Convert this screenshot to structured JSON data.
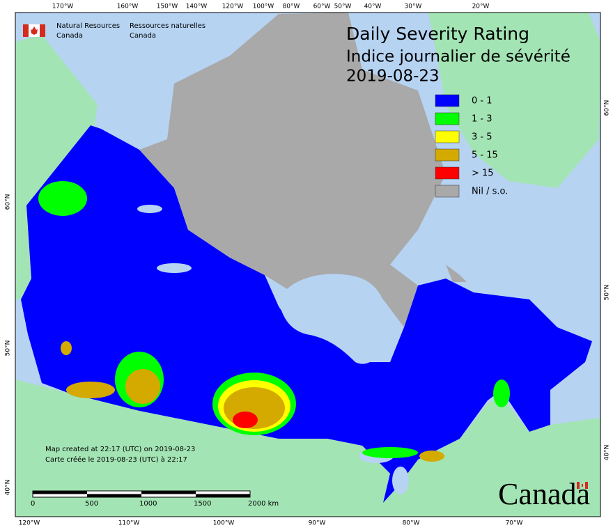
{
  "agency": {
    "en": [
      "Natural Resources",
      "Canada"
    ],
    "fr": [
      "Ressources naturelles",
      "Canada"
    ]
  },
  "title": {
    "lines": [
      "Daily Severity Rating",
      "Indice journalier de sévérité"
    ],
    "date": "2019-08-23"
  },
  "legend": [
    {
      "label": "0 - 1",
      "color": "#0000ff"
    },
    {
      "label": "1 - 3",
      "color": "#00ff00"
    },
    {
      "label": "3 - 5",
      "color": "#ffff00"
    },
    {
      "label": "5 - 15",
      "color": "#d4aa00"
    },
    {
      "label": "> 15",
      "color": "#ff0000"
    },
    {
      "label": "Nil / s.o.",
      "color": "#a9a9a9"
    }
  ],
  "graticule": {
    "top": [
      "170°W",
      "160°W",
      "150°W",
      "140°W",
      "120°W",
      "100°W",
      "80°W",
      "60°W",
      "50°W",
      "40°W",
      "30°W",
      "20°W"
    ],
    "bottom": [
      "120°W",
      "110°W",
      "100°W",
      "90°W",
      "80°W",
      "70°W"
    ],
    "left": [
      "60°N",
      "50°N",
      "40°N"
    ],
    "right": [
      "60°N",
      "50°N",
      "40°N"
    ]
  },
  "credits": [
    "Map created at 22:17 (UTC) on 2019-08-23",
    "Carte créée le 2019-08-23 (UTC) à 22:17"
  ],
  "scale_bar": {
    "labels": [
      "0",
      "500",
      "1000",
      "1500",
      "2000 km"
    ]
  },
  "wordmark": "Canada"
}
